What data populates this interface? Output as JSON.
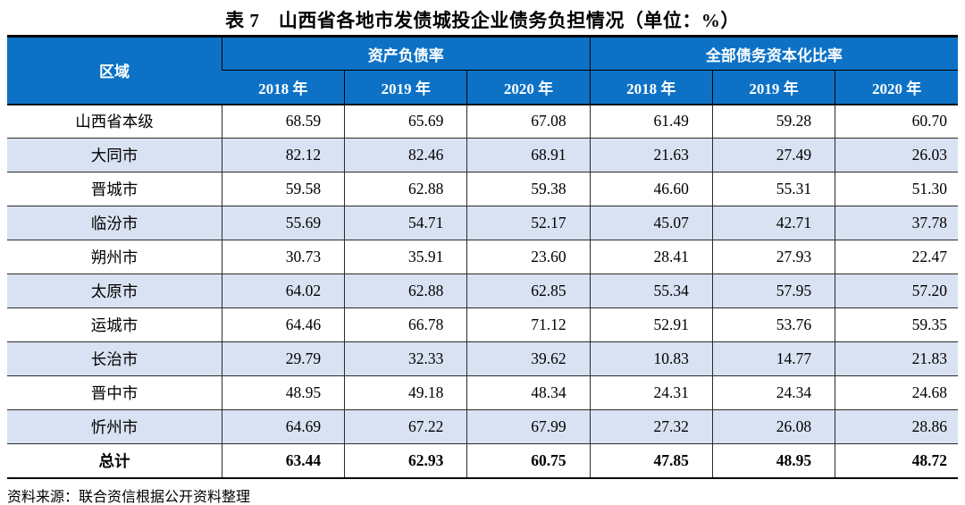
{
  "title": "表 7　山西省各地市发债城投企业债务负担情况（单位：%）",
  "colors": {
    "header_bg": "#0d72c6",
    "header_text": "#ffffff",
    "alt_row_bg": "#d9e2f2",
    "border": "#000000"
  },
  "table": {
    "region_header": "区域",
    "groups": [
      {
        "label": "资产负债率",
        "years": [
          "2018 年",
          "2019 年",
          "2020 年"
        ]
      },
      {
        "label": "全部债务资本化比率",
        "years": [
          "2018 年",
          "2019 年",
          "2020 年"
        ]
      }
    ],
    "rows": [
      {
        "region": "山西省本级",
        "values": [
          "68.59",
          "65.69",
          "67.08",
          "61.49",
          "59.28",
          "60.70"
        ],
        "bold": false
      },
      {
        "region": "大同市",
        "values": [
          "82.12",
          "82.46",
          "68.91",
          "21.63",
          "27.49",
          "26.03"
        ],
        "bold": false
      },
      {
        "region": "晋城市",
        "values": [
          "59.58",
          "62.88",
          "59.38",
          "46.60",
          "55.31",
          "51.30"
        ],
        "bold": false
      },
      {
        "region": "临汾市",
        "values": [
          "55.69",
          "54.71",
          "52.17",
          "45.07",
          "42.71",
          "37.78"
        ],
        "bold": false
      },
      {
        "region": "朔州市",
        "values": [
          "30.73",
          "35.91",
          "23.60",
          "28.41",
          "27.93",
          "22.47"
        ],
        "bold": false
      },
      {
        "region": "太原市",
        "values": [
          "64.02",
          "62.88",
          "62.85",
          "55.34",
          "57.95",
          "57.20"
        ],
        "bold": false
      },
      {
        "region": "运城市",
        "values": [
          "64.46",
          "66.78",
          "71.12",
          "52.91",
          "53.76",
          "59.35"
        ],
        "bold": false
      },
      {
        "region": "长治市",
        "values": [
          "29.79",
          "32.33",
          "39.62",
          "10.83",
          "14.77",
          "21.83"
        ],
        "bold": false
      },
      {
        "region": "晋中市",
        "values": [
          "48.95",
          "49.18",
          "48.34",
          "24.31",
          "24.34",
          "24.68"
        ],
        "bold": false
      },
      {
        "region": "忻州市",
        "values": [
          "64.69",
          "67.22",
          "67.99",
          "27.32",
          "26.08",
          "28.86"
        ],
        "bold": false
      },
      {
        "region": "总计",
        "values": [
          "63.44",
          "62.93",
          "60.75",
          "47.85",
          "48.95",
          "48.72"
        ],
        "bold": true
      }
    ]
  },
  "footer": "资料来源：联合资信根据公开资料整理"
}
